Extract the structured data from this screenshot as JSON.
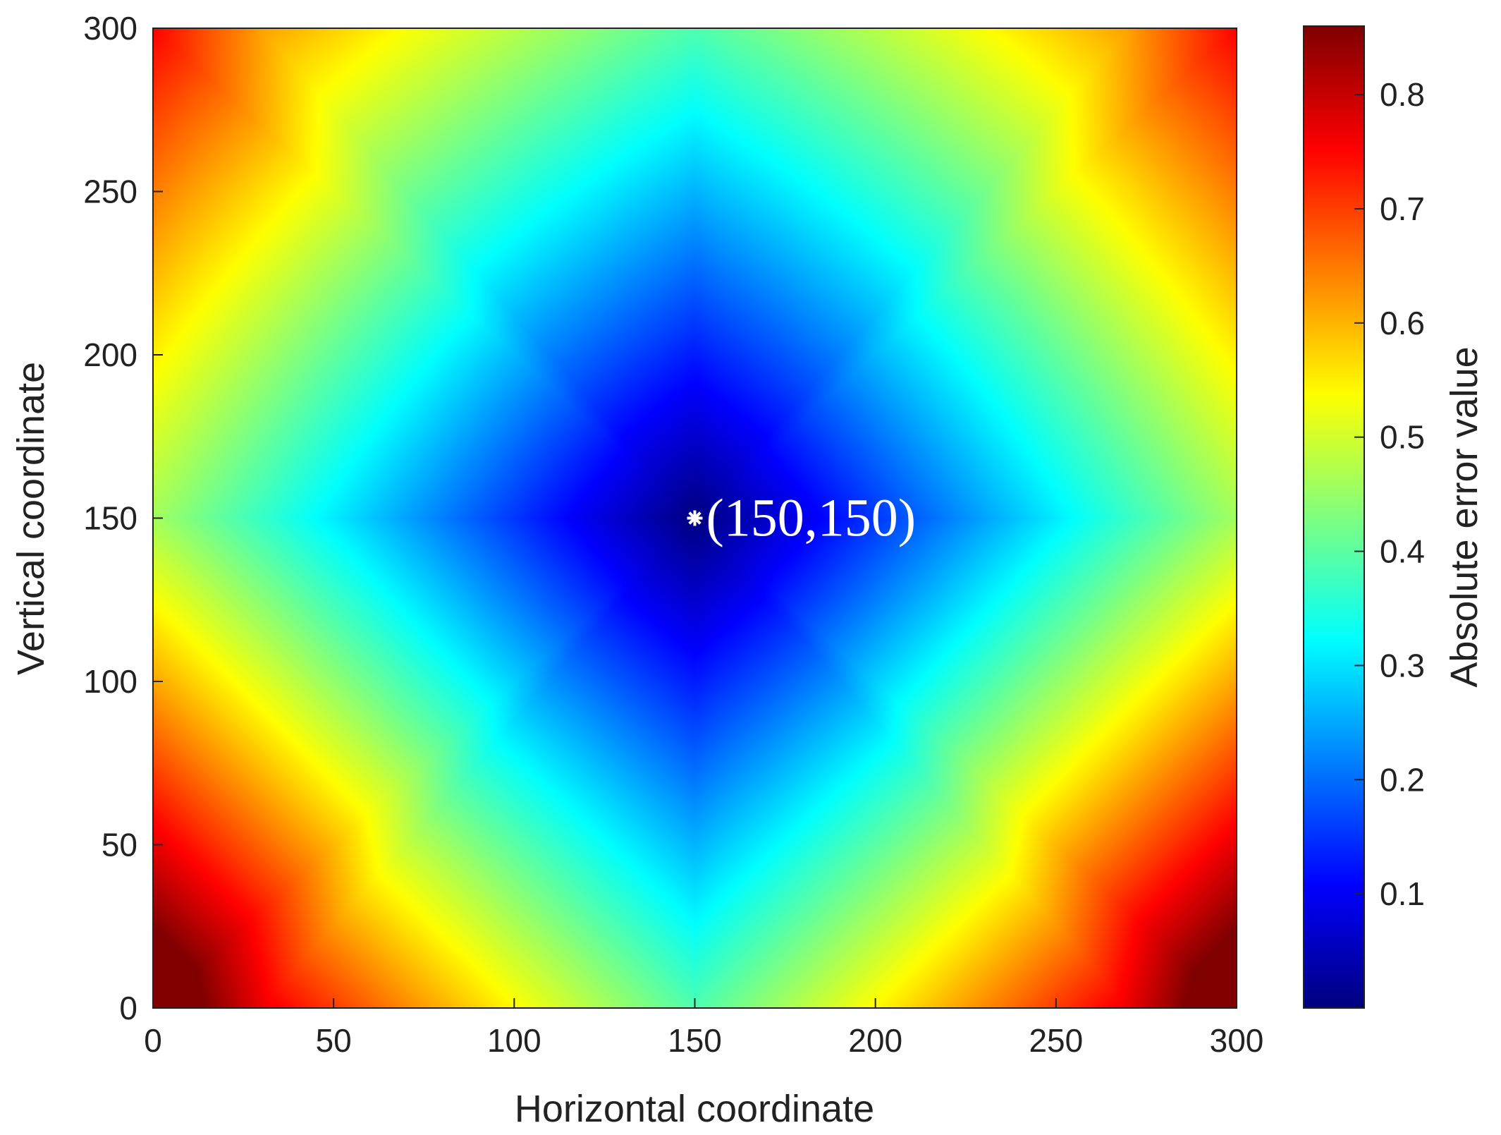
{
  "chart_data": {
    "type": "heatmap",
    "title": "",
    "xlabel": "Horizontal coordinate",
    "ylabel": "Vertical coordinate",
    "xlim": [
      0,
      300
    ],
    "ylim": [
      0,
      300
    ],
    "x_ticks": [
      "0",
      "50",
      "100",
      "150",
      "200",
      "250",
      "300"
    ],
    "y_ticks": [
      "0",
      "50",
      "100",
      "150",
      "200",
      "250",
      "300"
    ],
    "colorbar": {
      "label": "Absolute error value",
      "range": [
        0,
        0.86
      ],
      "ticks": [
        "0.1",
        "0.2",
        "0.3",
        "0.4",
        "0.5",
        "0.6",
        "0.7",
        "0.8"
      ],
      "colormap": "jet"
    },
    "annotation": {
      "text": "(150,150)",
      "x": 150,
      "y": 150,
      "marker": "asterisk",
      "color": "#ffffff"
    },
    "field_samples": {
      "description_points": [
        {
          "x": 150,
          "y": 150,
          "value": 0.0
        },
        {
          "x": 150,
          "y": 300,
          "value": 0.3
        },
        {
          "x": 150,
          "y": 0,
          "value": 0.3
        },
        {
          "x": 0,
          "y": 150,
          "value": 0.46
        },
        {
          "x": 300,
          "y": 150,
          "value": 0.46
        },
        {
          "x": 0,
          "y": 300,
          "value": 0.62
        },
        {
          "x": 300,
          "y": 300,
          "value": 0.62
        },
        {
          "x": 0,
          "y": 0,
          "value": 0.86
        },
        {
          "x": 300,
          "y": 0,
          "value": 0.86
        }
      ]
    }
  },
  "colors": {
    "axis": "#222222",
    "marker": "#ffffff"
  }
}
